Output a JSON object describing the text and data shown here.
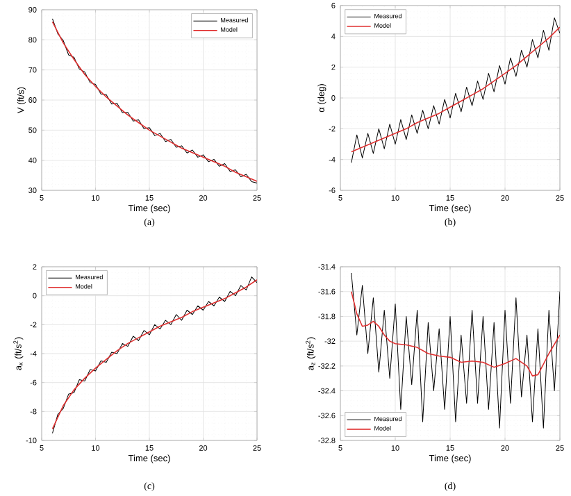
{
  "chart_data": [
    {
      "type": "line",
      "xlabel": "Time (sec)",
      "ylabel": "V (ft/s)",
      "xlim": [
        5,
        25
      ],
      "ylim": [
        30,
        90
      ],
      "xticks": [
        5,
        10,
        15,
        20,
        25
      ],
      "yticks": [
        30,
        40,
        50,
        60,
        70,
        80,
        90
      ],
      "grid": true,
      "legend": "top right",
      "annotations": [
        "(a)"
      ],
      "series": [
        {
          "name": "Measured",
          "color": "#000000",
          "x": [
            6,
            6.5,
            7,
            7.5,
            8,
            8.5,
            9,
            9.5,
            10,
            10.5,
            11,
            11.5,
            12,
            12.5,
            13,
            13.5,
            14,
            14.5,
            15,
            15.5,
            16,
            16.5,
            17,
            17.5,
            18,
            18.5,
            19,
            19.5,
            20,
            20.5,
            21,
            21.5,
            22,
            22.5,
            23,
            23.5,
            24,
            24.5,
            25
          ],
          "values": [
            87,
            82,
            79.8,
            75,
            74.2,
            70.3,
            69.3,
            65.8,
            65.2,
            62,
            61.8,
            58.7,
            58.9,
            55.8,
            55.9,
            53,
            53.4,
            50.5,
            50.8,
            48.2,
            48.9,
            46.2,
            46.9,
            44.3,
            44.8,
            42.4,
            43.4,
            41,
            41.8,
            39.5,
            40.3,
            38,
            38.9,
            36.3,
            36.8,
            34.5,
            35.3,
            32.9,
            32.4
          ]
        },
        {
          "name": "Model",
          "color": "#e03030",
          "x": [
            6,
            7,
            8,
            9,
            10,
            11,
            12,
            13,
            14,
            15,
            16,
            17,
            18,
            19,
            20,
            21,
            22,
            23,
            24,
            25
          ],
          "values": [
            86,
            79,
            73.5,
            68.5,
            64.5,
            61,
            58,
            55,
            52.5,
            50,
            48,
            46,
            44,
            42.5,
            41,
            39.5,
            38,
            36,
            34.5,
            33
          ]
        }
      ]
    },
    {
      "type": "line",
      "xlabel": "Time (sec)",
      "ylabel": "α (deg)",
      "xlim": [
        5,
        25
      ],
      "ylim": [
        -6,
        6
      ],
      "xticks": [
        5,
        10,
        15,
        20,
        25
      ],
      "yticks": [
        -6,
        -4,
        -2,
        0,
        2,
        4,
        6
      ],
      "grid": true,
      "legend": "top left",
      "annotations": [
        "(b)"
      ],
      "series": [
        {
          "name": "Measured",
          "color": "#000000",
          "x": [
            6,
            6.5,
            7,
            7.5,
            8,
            8.5,
            9,
            9.5,
            10,
            10.5,
            11,
            11.5,
            12,
            12.5,
            13,
            13.5,
            14,
            14.5,
            15,
            15.5,
            16,
            16.5,
            17,
            17.5,
            18,
            18.5,
            19,
            19.5,
            20,
            20.5,
            21,
            21.5,
            22,
            22.5,
            23,
            23.5,
            24,
            24.5,
            25
          ],
          "values": [
            -4.2,
            -2.4,
            -3.9,
            -2.3,
            -3.6,
            -2.0,
            -3.3,
            -1.7,
            -3.0,
            -1.4,
            -2.7,
            -1.1,
            -2.3,
            -0.8,
            -2.0,
            -0.5,
            -1.7,
            -0.1,
            -1.3,
            0.3,
            -0.9,
            0.7,
            -0.5,
            1.1,
            -0.1,
            1.6,
            0.4,
            2.1,
            0.9,
            2.6,
            1.4,
            3.1,
            2.0,
            3.8,
            2.6,
            4.4,
            3.1,
            5.2,
            4.2
          ]
        },
        {
          "name": "Model",
          "color": "#e03030",
          "x": [
            6,
            7,
            8,
            9,
            10,
            11,
            12,
            13,
            14,
            15,
            16,
            17,
            18,
            19,
            20,
            21,
            22,
            23,
            24,
            25
          ],
          "values": [
            -3.5,
            -3.2,
            -2.9,
            -2.6,
            -2.3,
            -2.0,
            -1.6,
            -1.3,
            -1.0,
            -0.6,
            -0.2,
            0.2,
            0.6,
            1.1,
            1.6,
            2.1,
            2.7,
            3.3,
            3.9,
            4.6
          ]
        }
      ]
    },
    {
      "type": "line",
      "xlabel": "Time (sec)",
      "ylabel": "a$_{x}$ (ft/s$^{2}$)",
      "xlim": [
        5,
        25
      ],
      "ylim": [
        -10,
        2
      ],
      "xticks": [
        5,
        10,
        15,
        20,
        25
      ],
      "yticks": [
        -10,
        -8,
        -6,
        -4,
        -2,
        0,
        2
      ],
      "grid": true,
      "legend": "top left",
      "annotations": [
        "(c)"
      ],
      "series": [
        {
          "name": "Measured",
          "color": "#000000",
          "x": [
            6,
            6.5,
            7,
            7.5,
            8,
            8.5,
            9,
            9.5,
            10,
            10.5,
            11,
            11.5,
            12,
            12.5,
            13,
            13.5,
            14,
            14.5,
            15,
            15.5,
            16,
            16.5,
            17,
            17.5,
            18,
            18.5,
            19,
            19.5,
            20,
            20.5,
            21,
            21.5,
            22,
            22.5,
            23,
            23.5,
            24,
            24.5,
            25
          ],
          "values": [
            -9.5,
            -8.2,
            -7.8,
            -6.8,
            -6.7,
            -5.8,
            -5.9,
            -5.1,
            -5.2,
            -4.5,
            -4.6,
            -3.9,
            -4.0,
            -3.3,
            -3.5,
            -2.8,
            -3.1,
            -2.4,
            -2.7,
            -2.0,
            -2.3,
            -1.7,
            -2.0,
            -1.3,
            -1.7,
            -1.0,
            -1.3,
            -0.7,
            -1.0,
            -0.4,
            -0.7,
            -0.1,
            -0.4,
            0.3,
            0.0,
            0.7,
            0.4,
            1.3,
            0.9
          ]
        },
        {
          "name": "Model",
          "color": "#e03030",
          "x": [
            6,
            7,
            8,
            9,
            10,
            11,
            12,
            13,
            14,
            15,
            16,
            17,
            18,
            19,
            20,
            21,
            22,
            23,
            24,
            25
          ],
          "values": [
            -9.2,
            -7.6,
            -6.5,
            -5.7,
            -5.0,
            -4.4,
            -3.8,
            -3.3,
            -2.9,
            -2.5,
            -2.1,
            -1.8,
            -1.5,
            -1.1,
            -0.8,
            -0.5,
            -0.2,
            0.2,
            0.6,
            1.1
          ]
        }
      ]
    },
    {
      "type": "line",
      "xlabel": "Time (sec)",
      "ylabel": "a$_{z}$ (ft/s$^{2}$)",
      "xlim": [
        5,
        25
      ],
      "ylim": [
        -32.8,
        -31.4
      ],
      "xticks": [
        5,
        10,
        15,
        20,
        25
      ],
      "yticks": [
        -32.8,
        -32.6,
        -32.4,
        -32.2,
        -32,
        -31.8,
        -31.6,
        -31.4
      ],
      "grid": true,
      "legend": "bottom left",
      "annotations": [
        "(d)"
      ],
      "series": [
        {
          "name": "Measured",
          "color": "#000000",
          "x": [
            6,
            6.5,
            7,
            7.5,
            8,
            8.5,
            9,
            9.5,
            10,
            10.5,
            11,
            11.5,
            12,
            12.5,
            13,
            13.5,
            14,
            14.5,
            15,
            15.5,
            16,
            16.5,
            17,
            17.5,
            18,
            18.5,
            19,
            19.5,
            20,
            20.5,
            21,
            21.5,
            22,
            22.5,
            23,
            23.5,
            24,
            24.5,
            25
          ],
          "values": [
            -31.45,
            -31.95,
            -31.55,
            -32.1,
            -31.65,
            -32.25,
            -31.75,
            -32.3,
            -31.7,
            -32.55,
            -31.8,
            -32.35,
            -31.75,
            -32.65,
            -31.85,
            -32.4,
            -31.9,
            -32.55,
            -31.8,
            -32.65,
            -31.95,
            -32.5,
            -31.75,
            -32.5,
            -31.8,
            -32.55,
            -31.85,
            -32.7,
            -31.75,
            -32.5,
            -31.65,
            -32.45,
            -31.95,
            -32.65,
            -31.9,
            -32.7,
            -31.75,
            -32.4,
            -31.6
          ]
        },
        {
          "name": "Model",
          "color": "#e03030",
          "x": [
            6,
            6.5,
            7,
            7.5,
            8,
            8.5,
            9,
            9.5,
            10,
            11,
            12,
            13,
            14,
            15,
            16,
            17,
            18,
            19,
            20,
            21,
            22,
            22.5,
            23,
            24,
            25
          ],
          "values": [
            -31.6,
            -31.78,
            -31.88,
            -31.87,
            -31.84,
            -31.88,
            -31.95,
            -32.0,
            -32.02,
            -32.03,
            -32.05,
            -32.1,
            -32.12,
            -32.13,
            -32.17,
            -32.16,
            -32.17,
            -32.21,
            -32.18,
            -32.14,
            -32.2,
            -32.28,
            -32.27,
            -32.1,
            -31.95
          ]
        }
      ]
    }
  ]
}
